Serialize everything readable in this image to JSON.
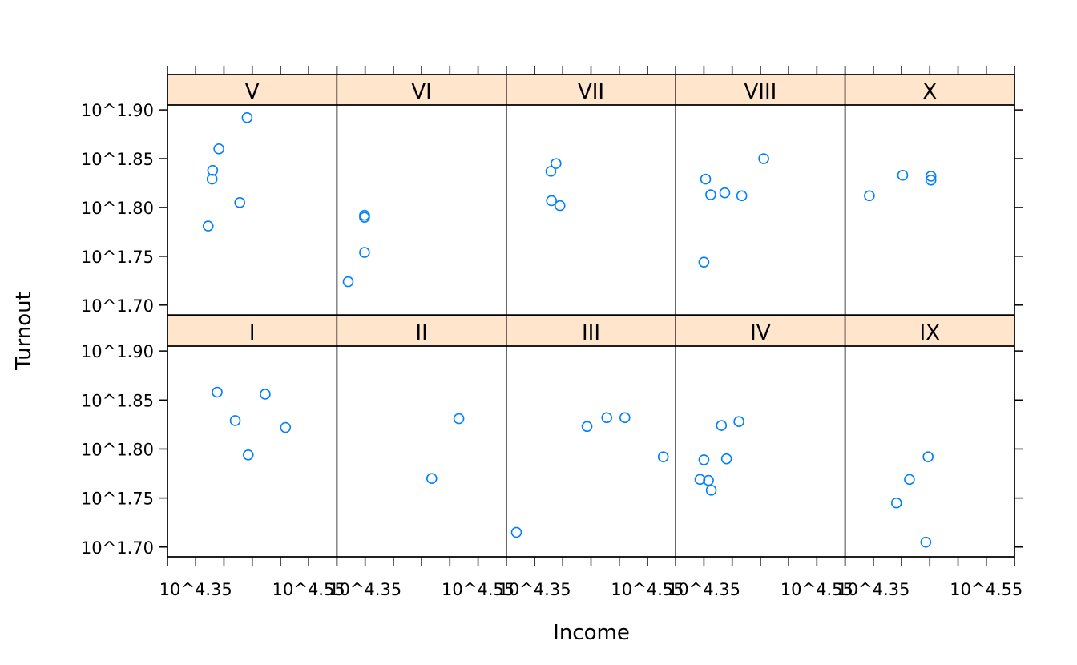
{
  "chart_data": {
    "type": "scatter",
    "layout": "trellis",
    "xlabel": "Income",
    "ylabel": "Turnout",
    "x_scale": "log10",
    "y_scale": "log10",
    "xlim": [
      4.3,
      4.6
    ],
    "ylim": [
      1.69,
      1.905
    ],
    "x_ticks": [
      4.3,
      4.35,
      4.4,
      4.45,
      4.5,
      4.55,
      4.6
    ],
    "x_tick_labels": [
      "10^4.35",
      "10^4.55"
    ],
    "x_tick_label_values": [
      4.35,
      4.55
    ],
    "y_ticks": [
      1.7,
      1.75,
      1.8,
      1.85,
      1.9
    ],
    "y_tick_labels": [
      "10^1.70",
      "10^1.75",
      "10^1.80",
      "10^1.85",
      "10^1.90"
    ],
    "colors": {
      "point": "#0080ff",
      "strip_fill": "#ffe5cc",
      "frame": "#000000"
    },
    "panels": [
      {
        "label": "V",
        "row": 0,
        "col": 0,
        "x": [
          4.372,
          4.379,
          4.38,
          4.391,
          4.428,
          4.441
        ],
        "y": [
          1.781,
          1.829,
          1.838,
          1.86,
          1.805,
          1.892
        ]
      },
      {
        "label": "VI",
        "row": 0,
        "col": 1,
        "x": [
          4.32,
          4.349,
          4.349,
          4.349
        ],
        "y": [
          1.724,
          1.754,
          1.79,
          1.792
        ]
      },
      {
        "label": "VII",
        "row": 0,
        "col": 2,
        "x": [
          4.379,
          4.38,
          4.388,
          4.395
        ],
        "y": [
          1.837,
          1.807,
          1.845,
          1.802
        ]
      },
      {
        "label": "VIII",
        "row": 0,
        "col": 3,
        "x": [
          4.35,
          4.353,
          4.362,
          4.387,
          4.417,
          4.456
        ],
        "y": [
          1.744,
          1.829,
          1.813,
          1.815,
          1.812,
          1.85
        ]
      },
      {
        "label": "X",
        "row": 0,
        "col": 4,
        "x": [
          4.343,
          4.402,
          4.452,
          4.452
        ],
        "y": [
          1.812,
          1.833,
          1.832,
          1.828
        ]
      },
      {
        "label": "I",
        "row": 1,
        "col": 0,
        "x": [
          4.388,
          4.42,
          4.443,
          4.473,
          4.509
        ],
        "y": [
          1.858,
          1.829,
          1.794,
          1.856,
          1.822
        ]
      },
      {
        "label": "II",
        "row": 1,
        "col": 1,
        "x": [
          4.468,
          4.516
        ],
        "y": [
          1.77,
          1.831
        ]
      },
      {
        "label": "III",
        "row": 1,
        "col": 2,
        "x": [
          4.318,
          4.443,
          4.478,
          4.51,
          4.578
        ],
        "y": [
          1.715,
          1.823,
          1.832,
          1.832,
          1.792
        ]
      },
      {
        "label": "IV",
        "row": 1,
        "col": 3,
        "x": [
          4.343,
          4.35,
          4.358,
          4.363,
          4.381,
          4.39,
          4.412
        ],
        "y": [
          1.769,
          1.789,
          1.768,
          1.758,
          1.824,
          1.79,
          1.828
        ]
      },
      {
        "label": "IX",
        "row": 1,
        "col": 4,
        "x": [
          4.391,
          4.414,
          4.443,
          4.447
        ],
        "y": [
          1.745,
          1.769,
          1.705,
          1.792
        ]
      }
    ]
  }
}
